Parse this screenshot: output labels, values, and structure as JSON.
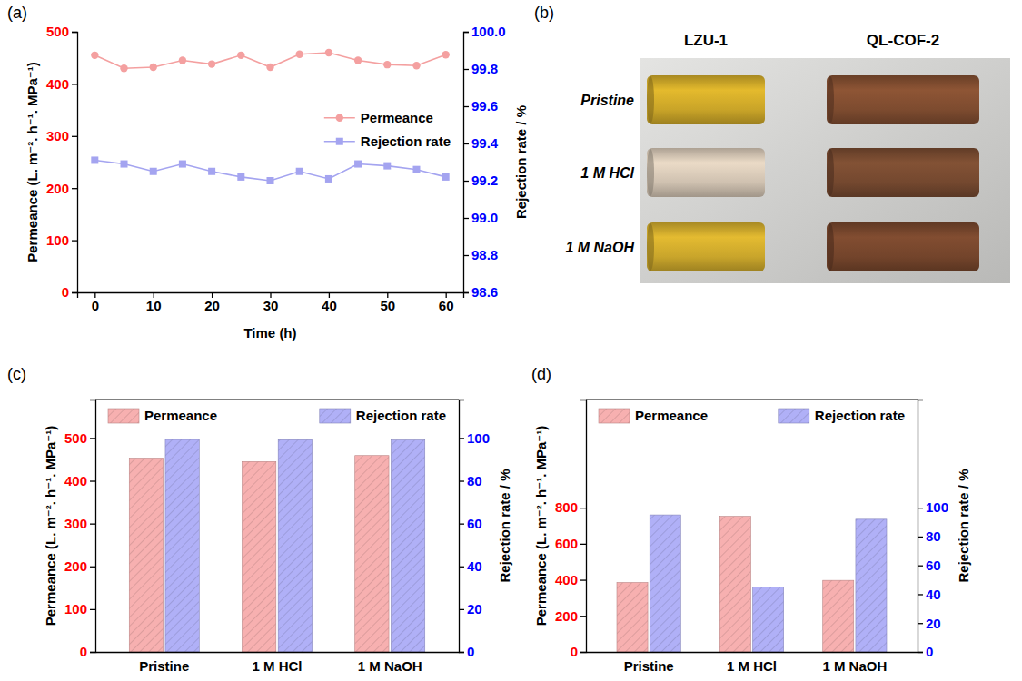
{
  "chart_data": [
    {
      "type": "line",
      "panel_label": "(a)",
      "x_label": "Time (h)",
      "y_label": "Permeance (L. m⁻². h⁻¹. MPa⁻¹)",
      "y2_label": "Rejection rate / %",
      "x": [
        0,
        5,
        10,
        15,
        20,
        25,
        30,
        35,
        40,
        45,
        50,
        55,
        60
      ],
      "xlim": [
        -3,
        63
      ],
      "xticks": [
        0,
        10,
        20,
        30,
        40,
        50,
        60
      ],
      "ylim": [
        0,
        500
      ],
      "yticks": [
        0,
        100,
        200,
        300,
        400,
        500
      ],
      "y2lim": [
        98.6,
        100
      ],
      "y2ticks": [
        98.6,
        98.8,
        {
          "value": 99,
          "label": "99.0"
        },
        99.2,
        99.4,
        99.6,
        99.8,
        {
          "value": 100,
          "label": "100.0"
        }
      ],
      "series": [
        {
          "name": "Permeance",
          "color": "#f4a0a0",
          "marker": "circle",
          "line_style": "solid",
          "values": [
            455,
            430,
            432,
            445,
            438,
            455,
            432,
            457,
            460,
            445,
            437,
            435,
            456
          ]
        },
        {
          "name": "Rejection rate",
          "color": "#a4a4f0",
          "marker": "square",
          "line_style": "solid",
          "axis": "y2",
          "values": [
            99.31,
            99.29,
            99.25,
            99.29,
            99.25,
            99.22,
            99.2,
            99.25,
            99.21,
            99.29,
            99.28,
            99.26,
            99.22
          ]
        }
      ],
      "legend": "right"
    },
    {
      "type": "bar",
      "panel_label": "(c)",
      "y_label": "Permeance (L. m⁻². h⁻¹. MPa⁻¹)",
      "y2_label": "Rejection rate / %",
      "categories": [
        "Pristine",
        "1 M HCl",
        "1 M NaOH"
      ],
      "ylim": [
        0,
        590
      ],
      "yticks": [
        0,
        100,
        200,
        300,
        400,
        500
      ],
      "y2lim": [
        0,
        118
      ],
      "y2ticks": [
        0,
        20,
        40,
        60,
        80,
        100
      ],
      "series": [
        {
          "name": "Permeance",
          "color": "#f7b0b0",
          "values": [
            453,
            445,
            459
          ]
        },
        {
          "name": "Rejection rate",
          "color": "#b0b0f7",
          "axis": "y2",
          "values": [
            99.3,
            99.2,
            99.1
          ]
        }
      ],
      "legend": "top"
    },
    {
      "type": "bar",
      "panel_label": "(d)",
      "y_label": "Permeance (L. m⁻². h⁻¹. MPa⁻¹)",
      "y2_label": "Rejection rate / %",
      "categories": [
        "Pristine",
        "1 M HCl",
        "1 M NaOH"
      ],
      "ylim": [
        0,
        1400
      ],
      "yticks": [
        0,
        200,
        400,
        600,
        800
      ],
      "y2lim": [
        0,
        175
      ],
      "y2ticks": [
        0,
        20,
        40,
        60,
        80,
        100
      ],
      "series": [
        {
          "name": "Permeance",
          "color": "#f7b0b0",
          "values": [
            385,
            752,
            397
          ]
        },
        {
          "name": "Rejection rate",
          "color": "#b0b0f7",
          "axis": "y2",
          "values": [
            95,
            45,
            92
          ]
        }
      ],
      "legend": "top"
    }
  ],
  "photo_panel": {
    "panel_label": "(b)",
    "columns": [
      "LZU-1",
      "QL-COF-2"
    ],
    "rows": [
      "Pristine",
      "1 M HCl",
      "1 M NaOH"
    ]
  }
}
